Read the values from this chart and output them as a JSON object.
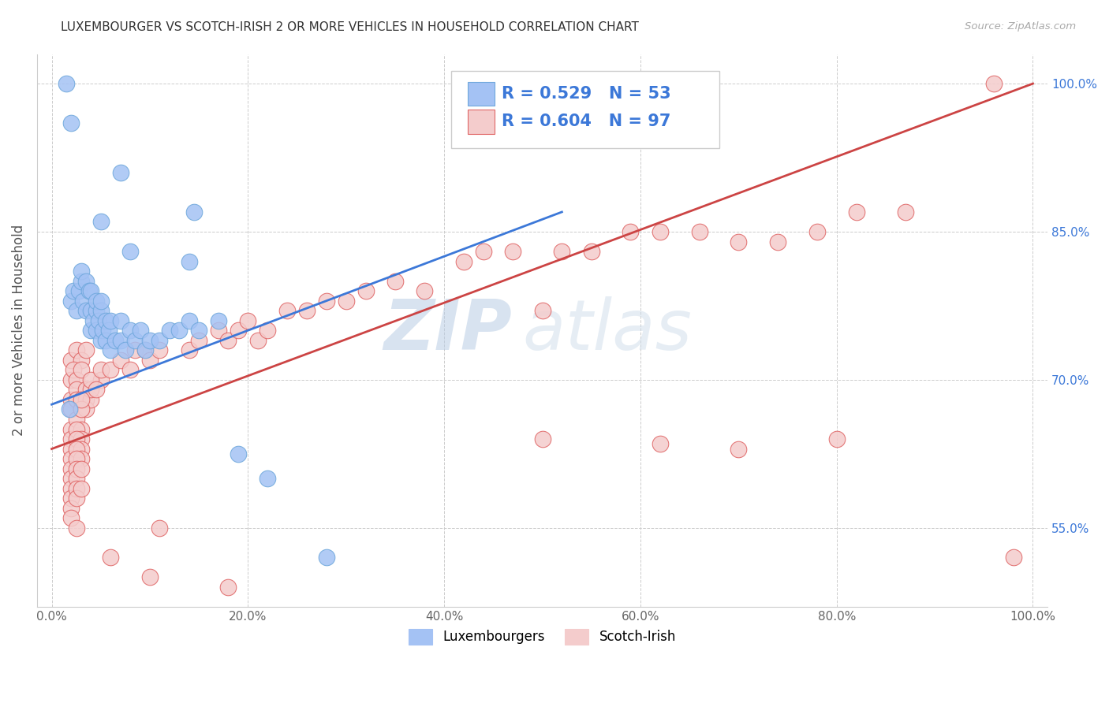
{
  "title": "LUXEMBOURGER VS SCOTCH-IRISH 2 OR MORE VEHICLES IN HOUSEHOLD CORRELATION CHART",
  "source": "Source: ZipAtlas.com",
  "ylabel": "2 or more Vehicles in Household",
  "watermark_zip": "ZIP",
  "watermark_atlas": "atlas",
  "xlim": [
    -1.5,
    101.5
  ],
  "ylim": [
    47.0,
    103.0
  ],
  "xticks": [
    0.0,
    20.0,
    40.0,
    60.0,
    80.0,
    100.0
  ],
  "xtick_labels": [
    "0.0%",
    "20.0%",
    "40.0%",
    "60.0%",
    "80.0%",
    "100.0%"
  ],
  "yticks": [
    55.0,
    70.0,
    85.0,
    100.0
  ],
  "ytick_labels": [
    "55.0%",
    "70.0%",
    "85.0%",
    "100.0%"
  ],
  "blue_R": "0.529",
  "blue_N": "53",
  "pink_R": "0.604",
  "pink_N": "97",
  "blue_color": "#a4c2f4",
  "blue_edge": "#6fa8dc",
  "pink_color": "#f4cccc",
  "pink_edge": "#e06666",
  "trend_blue": "#3c78d8",
  "trend_pink": "#cc4444",
  "legend_label_blue": "Luxembourgers",
  "legend_label_pink": "Scotch-Irish",
  "blue_scatter_x": [
    2.0,
    7.0,
    14.0,
    14.5,
    2.0,
    2.2,
    2.5,
    2.8,
    3.0,
    3.0,
    3.2,
    3.5,
    3.5,
    3.8,
    4.0,
    4.0,
    4.0,
    4.2,
    4.5,
    4.5,
    4.5,
    4.8,
    5.0,
    5.0,
    5.0,
    5.2,
    5.5,
    5.5,
    5.8,
    6.0,
    6.0,
    6.5,
    7.0,
    7.0,
    7.5,
    8.0,
    8.5,
    9.0,
    9.5,
    10.0,
    11.0,
    12.0,
    13.0,
    14.0,
    15.0,
    17.0,
    1.8,
    19.0,
    22.0,
    28.0,
    5.0,
    8.0,
    1.5
  ],
  "blue_scatter_y": [
    96.0,
    91.0,
    82.0,
    87.0,
    78.0,
    79.0,
    77.0,
    79.0,
    80.0,
    81.0,
    78.0,
    77.0,
    80.0,
    79.0,
    75.0,
    77.0,
    79.0,
    76.0,
    75.0,
    77.0,
    78.0,
    76.0,
    74.0,
    77.0,
    78.0,
    75.0,
    74.0,
    76.0,
    75.0,
    73.0,
    76.0,
    74.0,
    74.0,
    76.0,
    73.0,
    75.0,
    74.0,
    75.0,
    73.0,
    74.0,
    74.0,
    75.0,
    75.0,
    76.0,
    75.0,
    76.0,
    67.0,
    62.5,
    60.0,
    52.0,
    86.0,
    83.0,
    100.0
  ],
  "pink_scatter_x": [
    2.0,
    2.5,
    3.0,
    3.5,
    2.0,
    2.2,
    2.5,
    3.0,
    2.0,
    2.5,
    3.0,
    3.5,
    2.0,
    2.5,
    3.0,
    3.5,
    2.0,
    2.5,
    3.0,
    3.5,
    2.0,
    2.5,
    3.0,
    2.0,
    2.5,
    3.0,
    2.0,
    2.5,
    3.0,
    2.0,
    2.5,
    2.0,
    2.5,
    2.0,
    2.5,
    3.0,
    2.0,
    2.5,
    2.0,
    2.5,
    3.0,
    4.0,
    3.0,
    4.0,
    5.0,
    3.0,
    4.0,
    4.5,
    5.0,
    6.0,
    7.0,
    8.0,
    8.5,
    9.5,
    10.0,
    11.0,
    11.0,
    14.0,
    15.0,
    17.0,
    18.0,
    19.0,
    20.0,
    21.0,
    22.0,
    24.0,
    26.0,
    28.0,
    30.0,
    32.0,
    35.0,
    38.0,
    42.0,
    44.0,
    47.0,
    50.0,
    52.0,
    55.0,
    59.0,
    62.0,
    66.0,
    70.0,
    74.0,
    78.0,
    82.0,
    87.0,
    96.0,
    2.0,
    2.5,
    6.0,
    10.0,
    18.0,
    50.0,
    62.0,
    70.0,
    80.0,
    98.0
  ],
  "pink_scatter_y": [
    72.0,
    73.0,
    72.0,
    73.0,
    70.0,
    71.0,
    70.0,
    71.0,
    68.0,
    69.0,
    68.0,
    69.0,
    67.0,
    68.0,
    67.0,
    68.0,
    65.0,
    66.0,
    65.0,
    67.0,
    64.0,
    65.0,
    64.0,
    63.0,
    64.0,
    63.0,
    62.0,
    63.0,
    62.0,
    61.0,
    62.0,
    60.0,
    61.0,
    59.0,
    60.0,
    61.0,
    58.0,
    59.0,
    57.0,
    58.0,
    59.0,
    68.0,
    67.0,
    69.0,
    70.0,
    68.0,
    70.0,
    69.0,
    71.0,
    71.0,
    72.0,
    71.0,
    73.0,
    73.0,
    72.0,
    73.0,
    55.0,
    73.0,
    74.0,
    75.0,
    74.0,
    75.0,
    76.0,
    74.0,
    75.0,
    77.0,
    77.0,
    78.0,
    78.0,
    79.0,
    80.0,
    79.0,
    82.0,
    83.0,
    83.0,
    77.0,
    83.0,
    83.0,
    85.0,
    85.0,
    85.0,
    84.0,
    84.0,
    85.0,
    87.0,
    87.0,
    100.0,
    56.0,
    55.0,
    52.0,
    50.0,
    49.0,
    64.0,
    63.5,
    63.0,
    64.0,
    52.0
  ],
  "blue_trend_x0": 0.0,
  "blue_trend_y0": 67.5,
  "blue_trend_x1": 52.0,
  "blue_trend_y1": 87.0,
  "pink_trend_x0": 0.0,
  "pink_trend_y0": 63.0,
  "pink_trend_x1": 100.0,
  "pink_trend_y1": 100.0
}
